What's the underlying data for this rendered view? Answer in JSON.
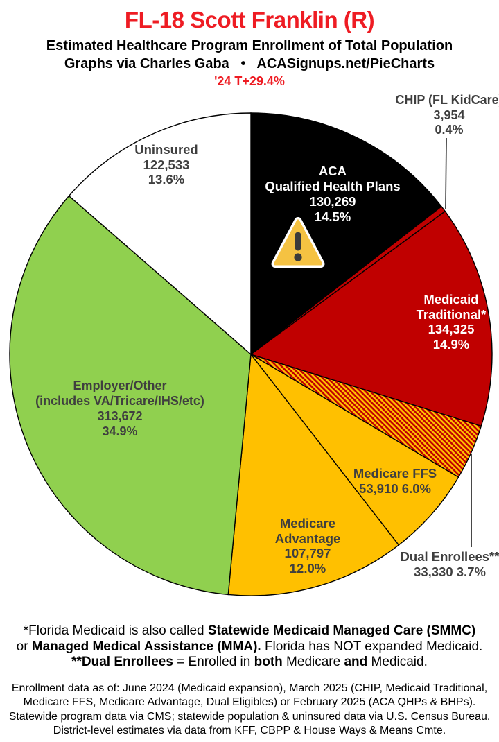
{
  "header": {
    "title": "FL-18 Scott Franklin (R)",
    "subtitle": "Estimated Healthcare Program Enrollment of Total Population",
    "byline": "Graphs via Charles Gaba   •   ACASignups.net/PieCharts",
    "trend": "'24 T+29.4%"
  },
  "colors": {
    "title_red": "#EE1C23",
    "pie_red": "#C00000",
    "pie_gold": "#FFC000",
    "pie_green": "#90D04F",
    "pie_black": "#000000",
    "pie_white": "#FFFFFF",
    "label_dark": "#3F3F3F",
    "hatch": "red-gold-diagonal-stripes"
  },
  "icons": {
    "aca_warning": "warning-triangle ⚠"
  },
  "chart_data": {
    "type": "pie",
    "title": "Estimated Healthcare Program Enrollment of Total Population",
    "start_angle_deg": 0,
    "direction": "clockwise",
    "slices": [
      {
        "id": "aca",
        "name": "ACA Qualified Health Plans",
        "value": 130269,
        "value_text": "130,269",
        "pct": 14.5,
        "pct_text": "14.5%",
        "color": "#000000",
        "lines": [
          "ACA",
          "Qualified Health Plans",
          "130,269",
          "14.5%"
        ]
      },
      {
        "id": "chip",
        "name": "CHIP (FL KidCare)",
        "value": 3954,
        "value_text": "3,954",
        "pct": 0.4,
        "pct_text": "0.4%",
        "color": "#C00000",
        "lines": [
          "CHIP (FL KidCare)",
          "3,954",
          "0.4%"
        ]
      },
      {
        "id": "medicaid",
        "name": "Medicaid Traditional*",
        "value": 134325,
        "value_text": "134,325",
        "pct": 14.9,
        "pct_text": "14.9%",
        "color": "#C00000",
        "lines": [
          "Medicaid",
          "Traditional*",
          "134,325",
          "14.9%"
        ]
      },
      {
        "id": "dual",
        "name": "Dual Enrollees**",
        "value": 33330,
        "value_text": "33,330",
        "pct": 3.7,
        "pct_text": "3.7%",
        "color": "hatch",
        "lines": [
          "Dual Enrollees**",
          "33,330 3.7%"
        ]
      },
      {
        "id": "ffs",
        "name": "Medicare FFS",
        "value": 53910,
        "value_text": "53,910",
        "pct": 6.0,
        "pct_text": "6.0%",
        "color": "#FFC000",
        "lines": [
          "Medicare FFS",
          "53,910 6.0%"
        ]
      },
      {
        "id": "ma",
        "name": "Medicare Advantage",
        "value": 107797,
        "value_text": "107,797",
        "pct": 12.0,
        "pct_text": "12.0%",
        "color": "#FFC000",
        "lines": [
          "Medicare",
          "Advantage",
          "107,797",
          "12.0%"
        ]
      },
      {
        "id": "employer",
        "name": "Employer/Other (includes VA/Tricare/IHS/etc)",
        "value": 313672,
        "value_text": "313,672",
        "pct": 34.9,
        "pct_text": "34.9%",
        "color": "#90D04F",
        "lines": [
          "Employer/Other",
          "(includes VA/Tricare/IHS/etc)",
          "313,672",
          "34.9%"
        ]
      },
      {
        "id": "uninsured",
        "name": "Uninsured",
        "value": 122533,
        "value_text": "122,533",
        "pct": 13.6,
        "pct_text": "13.6%",
        "color": "#FFFFFF",
        "lines": [
          "Uninsured",
          "122,533",
          "13.6%"
        ]
      }
    ]
  },
  "footnotes": {
    "l1a": "*Florida Medicaid is also called ",
    "l1b": "Statewide Medicaid Managed Care (SMMC)",
    "l2a": "or ",
    "l2b": "Managed Medical Assistance (MMA).",
    "l2c": " Florida has NOT expanded Medicaid.",
    "l3a": "**Dual Enrollees",
    "l3b": " = Enrolled in ",
    "l3c": "both",
    "l3d": " Medicare ",
    "l3e": "and",
    "l3f": " Medicaid."
  },
  "sources": {
    "lines": [
      "Enrollment data as of: June 2024 (Medicaid expansion), March 2025 (CHIP, Medicaid Traditional,",
      "Medicare FFS, Medicare Advantage, Dual Eligibles) or February 2025 (ACA QHPs & BHPs).",
      "Statewide program data via CMS; statewide population & uninsured data via U.S. Census Bureau.",
      "District-level estimates via data from KFF, CBPP & House Ways & Means Cmte."
    ]
  }
}
